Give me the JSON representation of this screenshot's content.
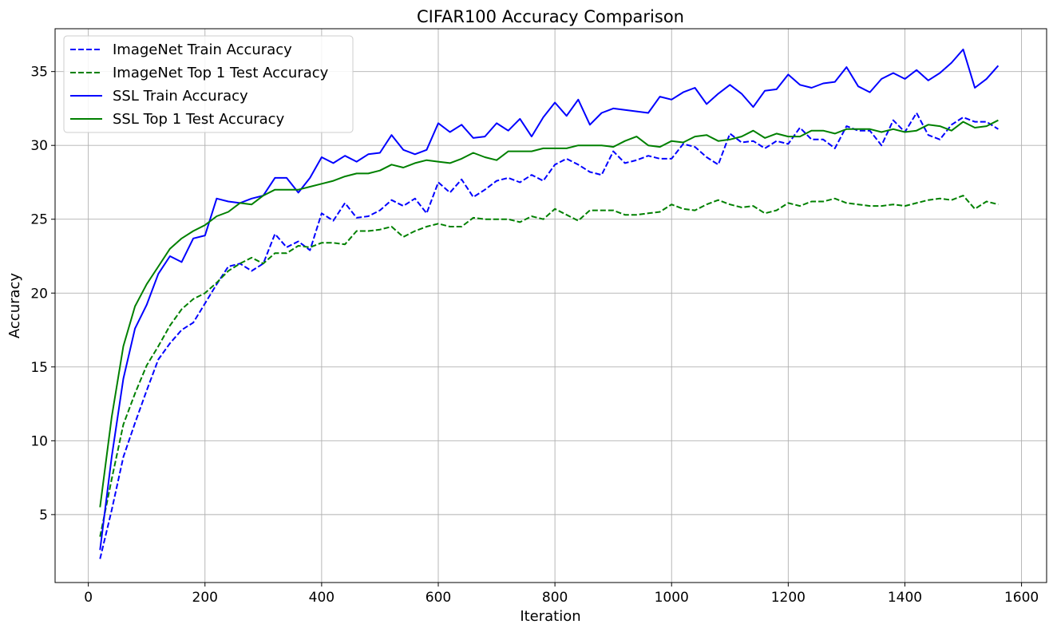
{
  "chart_data": {
    "type": "line",
    "title": "CIFAR100 Accuracy Comparison",
    "xlabel": "Iteration",
    "ylabel": "Accuracy",
    "xlim": [
      -57,
      1643
    ],
    "ylim": [
      0.4,
      37.9
    ],
    "xticks": [
      0,
      200,
      400,
      600,
      800,
      1000,
      1200,
      1400,
      1600
    ],
    "yticks": [
      5,
      10,
      15,
      20,
      25,
      30,
      35
    ],
    "xtick_labels": [
      "0",
      "200",
      "400",
      "600",
      "800",
      "1000",
      "1200",
      "1400",
      "1600"
    ],
    "ytick_labels": [
      "5",
      "10",
      "15",
      "20",
      "25",
      "30",
      "35"
    ],
    "grid": true,
    "legend_position": "top-left",
    "x": [
      20,
      40,
      60,
      80,
      100,
      120,
      140,
      160,
      180,
      200,
      220,
      240,
      260,
      280,
      300,
      320,
      340,
      360,
      380,
      400,
      420,
      440,
      460,
      480,
      500,
      520,
      540,
      560,
      580,
      600,
      620,
      640,
      660,
      680,
      700,
      720,
      740,
      760,
      780,
      800,
      820,
      840,
      860,
      880,
      900,
      920,
      940,
      960,
      980,
      1000,
      1020,
      1040,
      1060,
      1080,
      1100,
      1120,
      1140,
      1160,
      1180,
      1200,
      1220,
      1240,
      1260,
      1280,
      1300,
      1320,
      1340,
      1360,
      1380,
      1400,
      1420,
      1440,
      1460,
      1480,
      1500,
      1520,
      1540,
      1560
    ],
    "series": [
      {
        "name": "ImageNet Train Accuracy",
        "color": "#0000ff",
        "dash": "dashed",
        "values": [
          2.0,
          5.3,
          8.9,
          11.2,
          13.4,
          15.5,
          16.6,
          17.5,
          18.0,
          19.3,
          20.6,
          21.8,
          22.0,
          21.5,
          22.0,
          24.0,
          23.1,
          23.5,
          22.9,
          25.4,
          24.9,
          26.1,
          25.1,
          25.2,
          25.6,
          26.3,
          25.9,
          26.4,
          25.4,
          27.5,
          26.8,
          27.7,
          26.5,
          27.0,
          27.6,
          27.8,
          27.5,
          28.0,
          27.6,
          28.7,
          29.1,
          28.7,
          28.2,
          28.0,
          29.6,
          28.8,
          29.0,
          29.3,
          29.1,
          29.1,
          30.1,
          29.9,
          29.2,
          28.7,
          30.8,
          30.2,
          30.3,
          29.8,
          30.3,
          30.1,
          31.2,
          30.4,
          30.4,
          29.8,
          31.3,
          31.0,
          31.0,
          30.0,
          31.7,
          30.9,
          32.2,
          30.7,
          30.4,
          31.4,
          31.9,
          31.6,
          31.6,
          31.1
        ]
      },
      {
        "name": "ImageNet Top 1 Test Accuracy",
        "color": "#008000",
        "dash": "dashed",
        "values": [
          3.5,
          7.4,
          11.1,
          13.2,
          15.1,
          16.4,
          17.8,
          18.9,
          19.6,
          20.0,
          20.7,
          21.5,
          22.0,
          22.4,
          22.0,
          22.7,
          22.7,
          23.2,
          23.1,
          23.4,
          23.4,
          23.3,
          24.2,
          24.2,
          24.3,
          24.5,
          23.8,
          24.2,
          24.5,
          24.7,
          24.5,
          24.5,
          25.1,
          25.0,
          25.0,
          25.0,
          24.8,
          25.2,
          25.0,
          25.7,
          25.3,
          24.9,
          25.6,
          25.6,
          25.6,
          25.3,
          25.3,
          25.4,
          25.5,
          26.0,
          25.7,
          25.6,
          26.0,
          26.3,
          26.0,
          25.8,
          25.9,
          25.4,
          25.6,
          26.1,
          25.9,
          26.2,
          26.2,
          26.4,
          26.1,
          26.0,
          25.9,
          25.9,
          26.0,
          25.9,
          26.1,
          26.3,
          26.4,
          26.3,
          26.6,
          25.7,
          26.2,
          26.0
        ]
      },
      {
        "name": "SSL Train Accuracy",
        "color": "#0000ff",
        "dash": "solid",
        "values": [
          2.6,
          8.9,
          14.2,
          17.6,
          19.2,
          21.3,
          22.5,
          22.1,
          23.7,
          23.9,
          26.4,
          26.2,
          26.1,
          26.4,
          26.6,
          27.8,
          27.8,
          26.8,
          27.8,
          29.2,
          28.8,
          29.3,
          28.9,
          29.4,
          29.5,
          30.7,
          29.7,
          29.4,
          29.7,
          31.5,
          30.9,
          31.4,
          30.5,
          30.6,
          31.5,
          31.0,
          31.8,
          30.6,
          31.9,
          32.9,
          32.0,
          33.1,
          31.4,
          32.2,
          32.5,
          32.4,
          32.3,
          32.2,
          33.3,
          33.1,
          33.6,
          33.9,
          32.8,
          33.5,
          34.1,
          33.5,
          32.6,
          33.7,
          33.8,
          34.8,
          34.1,
          33.9,
          34.2,
          34.3,
          35.3,
          34.0,
          33.6,
          34.5,
          34.9,
          34.5,
          35.1,
          34.4,
          34.9,
          35.6,
          36.5,
          33.9,
          34.5,
          35.4
        ]
      },
      {
        "name": "SSL Top 1 Test Accuracy",
        "color": "#008000",
        "dash": "solid",
        "values": [
          5.5,
          11.6,
          16.4,
          19.1,
          20.6,
          21.8,
          23.0,
          23.7,
          24.2,
          24.6,
          25.2,
          25.5,
          26.1,
          26.0,
          26.6,
          27.0,
          27.0,
          27.0,
          27.2,
          27.4,
          27.6,
          27.9,
          28.1,
          28.1,
          28.3,
          28.7,
          28.5,
          28.8,
          29.0,
          28.9,
          28.8,
          29.1,
          29.5,
          29.2,
          29.0,
          29.6,
          29.6,
          29.6,
          29.8,
          29.8,
          29.8,
          30.0,
          30.0,
          30.0,
          29.9,
          30.3,
          30.6,
          30.0,
          29.9,
          30.3,
          30.2,
          30.6,
          30.7,
          30.3,
          30.4,
          30.6,
          31.0,
          30.5,
          30.8,
          30.6,
          30.6,
          31.0,
          31.0,
          30.8,
          31.1,
          31.1,
          31.1,
          30.9,
          31.1,
          30.9,
          31.0,
          31.4,
          31.3,
          31.0,
          31.6,
          31.2,
          31.3,
          31.7
        ]
      }
    ]
  }
}
